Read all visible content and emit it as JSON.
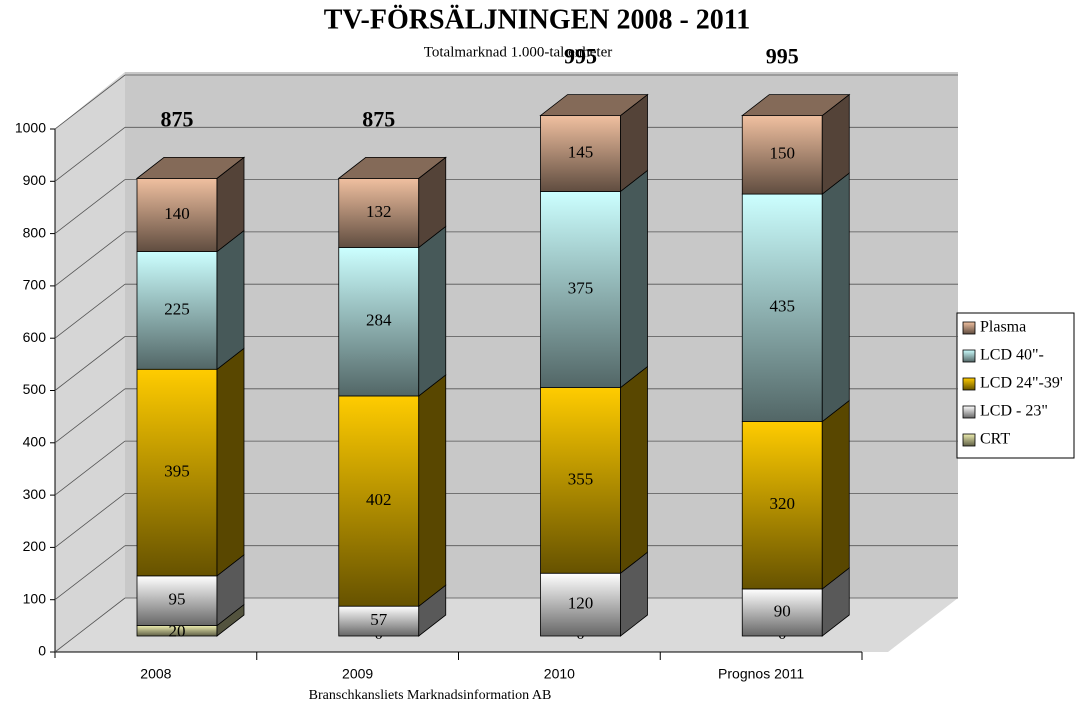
{
  "chart_data": {
    "type": "bar3d-stacked",
    "title": "TV-FÖRSÄLJNINGEN 2008 - 2011",
    "subtitle": "Totalmarknad 1.000-tal enheter",
    "source": "Branschkansliets Marknadsinformation AB",
    "categories": [
      "2008",
      "2009",
      "2010",
      "Prognos 2011"
    ],
    "series": [
      {
        "name": "CRT",
        "color": "#eeeeb0",
        "values": [
          20,
          0,
          0,
          0
        ]
      },
      {
        "name": "LCD - 23\"",
        "color": "#ffffff",
        "values": [
          95,
          57,
          120,
          90
        ]
      },
      {
        "name": "LCD 24\"-39'",
        "color": "#ffcc00",
        "values": [
          395,
          402,
          355,
          320
        ]
      },
      {
        "name": "LCD 40\"-",
        "color": "#ccffff",
        "values": [
          225,
          284,
          375,
          435
        ]
      },
      {
        "name": "Plasma",
        "color": "#f0c0a0",
        "values": [
          140,
          132,
          145,
          150
        ]
      }
    ],
    "totals": [
      875,
      875,
      995,
      995
    ],
    "ylim": [
      0,
      1000
    ],
    "yticks": [
      0,
      100,
      200,
      300,
      400,
      500,
      600,
      700,
      800,
      900,
      1000
    ],
    "grid": true,
    "legend": "right"
  }
}
